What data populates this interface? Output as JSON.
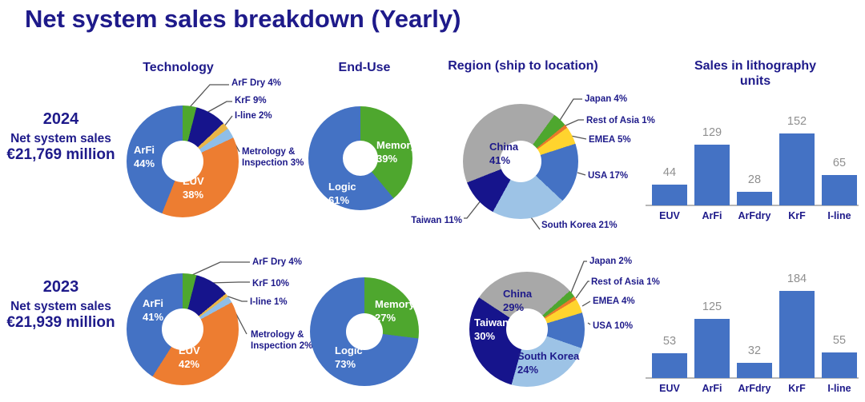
{
  "title": "Net system sales breakdown (Yearly)",
  "columns": {
    "technology": "Technology",
    "end_use": "End-Use",
    "region": "Region (ship to location)",
    "units": "Sales in lithography units"
  },
  "rows": [
    {
      "year": "2024",
      "subtitle": "Net system sales",
      "amount": "€21,769 million"
    },
    {
      "year": "2023",
      "subtitle": "Net system sales",
      "amount": "€21,939 million"
    }
  ],
  "palette": {
    "heading_text": "#1E1A8A",
    "bar_blue": "#4472C4",
    "value_label_gray": "#8F8F8F",
    "axis_gray": "#B8B8B8",
    "leader_line": "#555555"
  },
  "chart_data": [
    {
      "id": "technology-2024",
      "type": "pie",
      "row": "2024",
      "column": "Technology",
      "units": "% of net system sales",
      "start_angle": 0,
      "donut": true,
      "slices": [
        {
          "label": "ArF Dry",
          "value": 4,
          "color": "#4EA72E"
        },
        {
          "label": "KrF",
          "value": 9,
          "color": "#16148C"
        },
        {
          "label": "I-line",
          "value": 2,
          "color": "#E9B648"
        },
        {
          "label": "Metrology & Inspection",
          "value": 3,
          "color": "#8FBEE8"
        },
        {
          "label": "EUV",
          "value": 38,
          "color": "#ED7D31"
        },
        {
          "label": "ArFi",
          "value": 44,
          "color": "#4472C4"
        }
      ]
    },
    {
      "id": "end-use-2024",
      "type": "pie",
      "row": "2024",
      "column": "End-Use",
      "units": "% of net system sales",
      "start_angle": 0,
      "donut": true,
      "slices": [
        {
          "label": "Memory",
          "value": 39,
          "color": "#4EA72E"
        },
        {
          "label": "Logic",
          "value": 61,
          "color": "#4472C4"
        }
      ]
    },
    {
      "id": "region-2024",
      "type": "pie",
      "row": "2024",
      "column": "Region (ship to location)",
      "units": "% of net system sales",
      "start_angle": 36,
      "donut": true,
      "slices": [
        {
          "label": "Japan",
          "value": 4,
          "color": "#4EA72E"
        },
        {
          "label": "Rest of Asia",
          "value": 1,
          "color": "#E8792B"
        },
        {
          "label": "EMEA",
          "value": 5,
          "color": "#FFD42E"
        },
        {
          "label": "USA",
          "value": 17,
          "color": "#4472C4"
        },
        {
          "label": "South Korea",
          "value": 21,
          "color": "#9DC3E6"
        },
        {
          "label": "Taiwan",
          "value": 11,
          "color": "#16148C"
        },
        {
          "label": "China",
          "value": 41,
          "color": "#A8A8A8"
        }
      ]
    },
    {
      "id": "litho-units-2024",
      "type": "bar",
      "row": "2024",
      "title": "Sales in lithography units",
      "categories": [
        "EUV",
        "ArFi",
        "ArFdry",
        "KrF",
        "I-line"
      ],
      "values": [
        44,
        129,
        28,
        152,
        65
      ],
      "bar_color": "#4472C4",
      "ylim": [
        0,
        200
      ],
      "grid": false,
      "value_labels": true
    },
    {
      "id": "technology-2023",
      "type": "pie",
      "row": "2023",
      "column": "Technology",
      "units": "% of net system sales",
      "start_angle": 0,
      "donut": true,
      "slices": [
        {
          "label": "ArF Dry",
          "value": 4,
          "color": "#4EA72E"
        },
        {
          "label": "KrF",
          "value": 10,
          "color": "#16148C"
        },
        {
          "label": "I-line",
          "value": 1,
          "color": "#E9B648"
        },
        {
          "label": "Metrology & Inspection",
          "value": 2,
          "color": "#8FBEE8"
        },
        {
          "label": "EUV",
          "value": 42,
          "color": "#ED7D31"
        },
        {
          "label": "ArFi",
          "value": 41,
          "color": "#4472C4"
        }
      ]
    },
    {
      "id": "end-use-2023",
      "type": "pie",
      "row": "2023",
      "column": "End-Use",
      "units": "% of net system sales",
      "start_angle": 0,
      "donut": true,
      "slices": [
        {
          "label": "Memory",
          "value": 27,
          "color": "#4EA72E"
        },
        {
          "label": "Logic",
          "value": 73,
          "color": "#4472C4"
        }
      ]
    },
    {
      "id": "region-2023",
      "type": "pie",
      "row": "2023",
      "column": "Region (ship to location)",
      "units": "% of net system sales",
      "start_angle": 48,
      "donut": true,
      "slices": [
        {
          "label": "Japan",
          "value": 2,
          "color": "#4EA72E"
        },
        {
          "label": "Rest of Asia",
          "value": 1,
          "color": "#E8792B"
        },
        {
          "label": "EMEA",
          "value": 4,
          "color": "#FFD42E"
        },
        {
          "label": "USA",
          "value": 10,
          "color": "#4472C4"
        },
        {
          "label": "South Korea",
          "value": 24,
          "color": "#9DC3E6"
        },
        {
          "label": "Taiwan",
          "value": 30,
          "color": "#16148C"
        },
        {
          "label": "China",
          "value": 29,
          "color": "#A8A8A8"
        }
      ]
    },
    {
      "id": "litho-units-2023",
      "type": "bar",
      "row": "2023",
      "title": "Sales in lithography units",
      "categories": [
        "EUV",
        "ArFi",
        "ArFdry",
        "KrF",
        "I-line"
      ],
      "values": [
        53,
        125,
        32,
        184,
        55
      ],
      "bar_color": "#4472C4",
      "ylim": [
        0,
        200
      ],
      "grid": false,
      "value_labels": true
    }
  ]
}
